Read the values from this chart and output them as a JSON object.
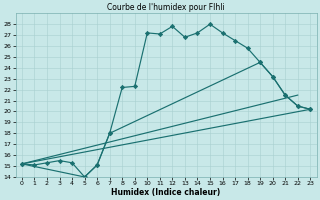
{
  "title": "Courbe de l'humidex pour Flhli",
  "xlabel": "Humidex (Indice chaleur)",
  "bg_color": "#c8e8e8",
  "line_color": "#1a7070",
  "grid_color": "#a8d0d0",
  "xlim": [
    -0.5,
    23.5
  ],
  "ylim": [
    14,
    29
  ],
  "yticks": [
    14,
    15,
    16,
    17,
    18,
    19,
    20,
    21,
    22,
    23,
    24,
    25,
    26,
    27,
    28
  ],
  "xticks": [
    0,
    1,
    2,
    3,
    4,
    5,
    6,
    7,
    8,
    9,
    10,
    11,
    12,
    13,
    14,
    15,
    16,
    17,
    18,
    19,
    20,
    21,
    22,
    23
  ],
  "line1_x": [
    0,
    1,
    2,
    3,
    4,
    5,
    6,
    7,
    8,
    9,
    10,
    11,
    12,
    13,
    14,
    15,
    16,
    17,
    18,
    19,
    20,
    21,
    22,
    23
  ],
  "line1_y": [
    15.2,
    15.1,
    15.3,
    15.5,
    15.3,
    14.0,
    15.1,
    18.0,
    22.2,
    22.3,
    27.2,
    27.1,
    27.8,
    26.8,
    27.2,
    28.0,
    27.2,
    26.5,
    25.8,
    24.5,
    23.2,
    21.5,
    20.5,
    20.2
  ],
  "line2_x": [
    0,
    5,
    6,
    7,
    19,
    20,
    21,
    22,
    23
  ],
  "line2_y": [
    15.2,
    14.0,
    15.1,
    18.0,
    24.5,
    23.2,
    21.5,
    20.5,
    20.2
  ],
  "line3_x": [
    0,
    23
  ],
  "line3_y": [
    15.2,
    20.2
  ],
  "line4_x": [
    0,
    22
  ],
  "line4_y": [
    15.2,
    21.5
  ],
  "marker_style": "D",
  "marker_size": 2.2,
  "line_width": 0.85
}
